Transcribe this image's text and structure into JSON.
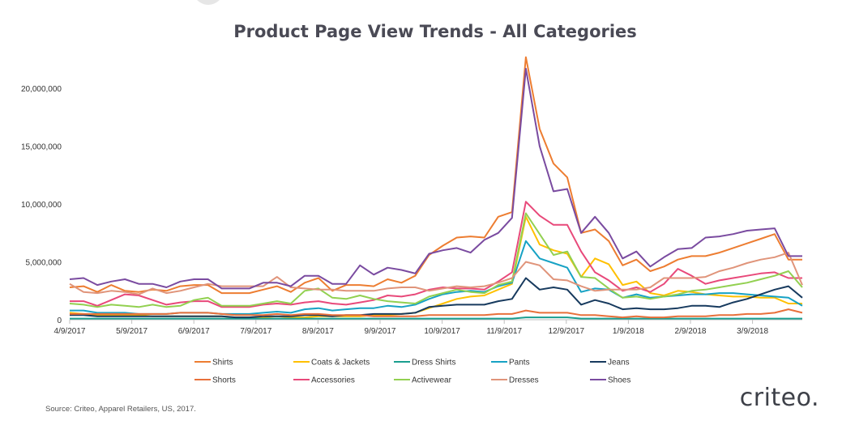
{
  "chart_data": {
    "type": "line",
    "title": "Product Page View Trends - All Categories",
    "xlabel": "",
    "ylabel": "",
    "ylim": [
      0,
      22600000
    ],
    "y_ticks": [
      0,
      5000000,
      10000000,
      15000000,
      20000000
    ],
    "y_tick_labels": [
      "0",
      "5,000,000",
      "10,000,000",
      "15,000,000",
      "20,000,000"
    ],
    "x_tick_labels": [
      "4/9/2017",
      "5/9/2017",
      "6/9/2017",
      "7/9/2017",
      "8/9/2017",
      "9/9/2017",
      "10/9/2017",
      "11/9/2017",
      "12/9/2017",
      "1/9/2018",
      "2/9/2018",
      "3/9/2018"
    ],
    "x": [
      "4/9/2017",
      "4/16/2017",
      "4/23/2017",
      "4/30/2017",
      "5/7/2017",
      "5/14/2017",
      "5/21/2017",
      "5/28/2017",
      "6/4/2017",
      "6/11/2017",
      "6/18/2017",
      "6/25/2017",
      "7/2/2017",
      "7/9/2017",
      "7/16/2017",
      "7/23/2017",
      "7/30/2017",
      "8/6/2017",
      "8/13/2017",
      "8/20/2017",
      "8/27/2017",
      "9/3/2017",
      "9/10/2017",
      "9/17/2017",
      "9/24/2017",
      "10/1/2017",
      "10/8/2017",
      "10/15/2017",
      "10/22/2017",
      "10/29/2017",
      "11/5/2017",
      "11/12/2017",
      "11/19/2017",
      "11/26/2017",
      "12/3/2017",
      "12/10/2017",
      "12/17/2017",
      "12/24/2017",
      "12/31/2017",
      "1/7/2018",
      "1/14/2018",
      "1/21/2018",
      "1/28/2018",
      "2/4/2018",
      "2/11/2018",
      "2/18/2018",
      "2/25/2018",
      "3/4/2018",
      "3/11/2018",
      "3/18/2018",
      "3/25/2018",
      "4/1/2018",
      "4/8/2018",
      "4/15/2018"
    ],
    "series": [
      {
        "name": "Shirts",
        "color": "#ed7d31",
        "values": [
          2800000,
          2900000,
          2400000,
          3000000,
          2500000,
          2400000,
          2600000,
          2500000,
          2900000,
          3000000,
          3000000,
          2300000,
          2300000,
          2300000,
          2600000,
          2900000,
          2400000,
          3200000,
          3600000,
          2500000,
          3000000,
          3000000,
          2900000,
          3500000,
          3200000,
          3800000,
          5600000,
          6400000,
          7100000,
          7200000,
          7100000,
          8900000,
          9300000,
          22700000,
          16500000,
          13500000,
          12300000,
          7500000,
          7800000,
          6800000,
          4700000,
          5200000,
          4200000,
          4600000,
          5200000,
          5500000,
          5500000,
          5800000,
          6200000,
          6600000,
          7000000,
          7400000,
          5200000,
          5200000
        ]
      },
      {
        "name": "Coats & Jackets",
        "color": "#ffc000",
        "values": [
          600000,
          500000,
          400000,
          400000,
          400000,
          400000,
          300000,
          300000,
          300000,
          300000,
          300000,
          300000,
          200000,
          200000,
          200000,
          300000,
          200000,
          200000,
          300000,
          300000,
          300000,
          300000,
          400000,
          400000,
          500000,
          600000,
          1000000,
          1400000,
          1800000,
          2000000,
          2100000,
          2600000,
          3100000,
          8900000,
          6500000,
          6000000,
          5700000,
          3700000,
          5300000,
          4800000,
          3000000,
          3300000,
          2300000,
          2100000,
          2500000,
          2400000,
          2200000,
          2100000,
          2000000,
          2000000,
          1900000,
          1900000,
          1400000,
          1400000
        ]
      },
      {
        "name": "Dress Shirts",
        "color": "#1a9e8f",
        "values": [
          100000,
          100000,
          100000,
          100000,
          100000,
          100000,
          100000,
          100000,
          100000,
          100000,
          100000,
          100000,
          100000,
          100000,
          100000,
          100000,
          100000,
          100000,
          100000,
          100000,
          100000,
          100000,
          100000,
          100000,
          100000,
          100000,
          100000,
          100000,
          100000,
          100000,
          100000,
          100000,
          100000,
          200000,
          200000,
          200000,
          200000,
          100000,
          100000,
          100000,
          100000,
          100000,
          100000,
          100000,
          100000,
          100000,
          100000,
          100000,
          100000,
          100000,
          100000,
          100000,
          100000,
          100000
        ]
      },
      {
        "name": "Pants",
        "color": "#17a2c4",
        "values": [
          800000,
          800000,
          600000,
          600000,
          600000,
          500000,
          500000,
          500000,
          600000,
          600000,
          600000,
          500000,
          500000,
          500000,
          600000,
          700000,
          600000,
          900000,
          1000000,
          800000,
          900000,
          1000000,
          1000000,
          1200000,
          1100000,
          1300000,
          1800000,
          2200000,
          2400000,
          2500000,
          2400000,
          2900000,
          3200000,
          6800000,
          5300000,
          4900000,
          4500000,
          2400000,
          2700000,
          2600000,
          1900000,
          2200000,
          1900000,
          2000000,
          2100000,
          2200000,
          2200000,
          2300000,
          2300000,
          2200000,
          2100000,
          2000000,
          1900000,
          1200000
        ]
      },
      {
        "name": "Jeans",
        "color": "#173a5e",
        "values": [
          400000,
          400000,
          300000,
          300000,
          300000,
          300000,
          300000,
          300000,
          300000,
          300000,
          300000,
          300000,
          200000,
          200000,
          300000,
          300000,
          300000,
          400000,
          400000,
          300000,
          400000,
          400000,
          500000,
          500000,
          500000,
          600000,
          1100000,
          1200000,
          1300000,
          1300000,
          1300000,
          1600000,
          1800000,
          3600000,
          2600000,
          2800000,
          2600000,
          1300000,
          1700000,
          1400000,
          900000,
          1000000,
          900000,
          900000,
          1000000,
          1200000,
          1200000,
          1100000,
          1500000,
          1800000,
          2200000,
          2600000,
          2900000,
          1900000
        ]
      },
      {
        "name": "Shorts",
        "color": "#e8703a",
        "values": [
          500000,
          500000,
          500000,
          500000,
          500000,
          500000,
          500000,
          500000,
          600000,
          600000,
          600000,
          500000,
          400000,
          400000,
          400000,
          500000,
          400000,
          500000,
          500000,
          400000,
          400000,
          400000,
          300000,
          300000,
          300000,
          300000,
          400000,
          400000,
          400000,
          400000,
          400000,
          500000,
          500000,
          800000,
          600000,
          600000,
          600000,
          400000,
          400000,
          300000,
          200000,
          300000,
          200000,
          200000,
          300000,
          300000,
          300000,
          400000,
          400000,
          500000,
          500000,
          600000,
          900000,
          600000
        ]
      },
      {
        "name": "Accessories",
        "color": "#e8497a",
        "values": [
          1600000,
          1600000,
          1200000,
          1700000,
          2200000,
          2100000,
          1700000,
          1300000,
          1500000,
          1600000,
          1600000,
          1100000,
          1100000,
          1100000,
          1300000,
          1400000,
          1300000,
          1500000,
          1600000,
          1400000,
          1300000,
          1500000,
          1700000,
          2100000,
          2000000,
          2200000,
          2600000,
          2800000,
          2700000,
          2700000,
          2600000,
          3300000,
          4100000,
          10200000,
          9000000,
          8200000,
          8200000,
          5900000,
          4100000,
          3400000,
          2500000,
          2800000,
          2400000,
          3100000,
          4400000,
          3800000,
          3100000,
          3400000,
          3600000,
          3800000,
          4000000,
          4100000,
          3600000,
          3600000
        ]
      },
      {
        "name": "Activewear",
        "color": "#92d050",
        "values": [
          1400000,
          1300000,
          1100000,
          1300000,
          1200000,
          1100000,
          1300000,
          1100000,
          1200000,
          1700000,
          1900000,
          1200000,
          1200000,
          1200000,
          1400000,
          1600000,
          1400000,
          2500000,
          2700000,
          1900000,
          1800000,
          2100000,
          1800000,
          1600000,
          1500000,
          1400000,
          2000000,
          2300000,
          2600000,
          2400000,
          2300000,
          3000000,
          3300000,
          9200000,
          7400000,
          5600000,
          5900000,
          3700000,
          3600000,
          2700000,
          1900000,
          2000000,
          1800000,
          2000000,
          2200000,
          2500000,
          2600000,
          2800000,
          3000000,
          3200000,
          3500000,
          3800000,
          4200000,
          2800000
        ]
      },
      {
        "name": "Dresses",
        "color": "#e0947a",
        "values": [
          3100000,
          2400000,
          2300000,
          2500000,
          2400000,
          2200000,
          2700000,
          2300000,
          2500000,
          2800000,
          3100000,
          2900000,
          2900000,
          2900000,
          2900000,
          3700000,
          2800000,
          2700000,
          2600000,
          2600000,
          2500000,
          2500000,
          2500000,
          2700000,
          2800000,
          2800000,
          2500000,
          2700000,
          2900000,
          2800000,
          2900000,
          3200000,
          3600000,
          5000000,
          4700000,
          3500000,
          3400000,
          2900000,
          2500000,
          2600000,
          2600000,
          2600000,
          2800000,
          3600000,
          3600000,
          3600000,
          3700000,
          4200000,
          4500000,
          4900000,
          5200000,
          5400000,
          5800000,
          3000000
        ]
      },
      {
        "name": "Shoes",
        "color": "#7a4ba0",
        "values": [
          3500000,
          3600000,
          3000000,
          3300000,
          3500000,
          3100000,
          3100000,
          2800000,
          3300000,
          3500000,
          3500000,
          2700000,
          2700000,
          2700000,
          3200000,
          3200000,
          2900000,
          3800000,
          3800000,
          3100000,
          3100000,
          4700000,
          3900000,
          4500000,
          4300000,
          4000000,
          5700000,
          6000000,
          6200000,
          5800000,
          6900000,
          7500000,
          8800000,
          21700000,
          15000000,
          11100000,
          11300000,
          7500000,
          8900000,
          7500000,
          5300000,
          5900000,
          4600000,
          5400000,
          6100000,
          6200000,
          7100000,
          7200000,
          7400000,
          7700000,
          7800000,
          7900000,
          5500000,
          5500000
        ]
      }
    ],
    "legend_position": "bottom",
    "grid": false
  },
  "footer": {
    "source": "Source: Criteo, Apparel Retailers, US, 2017.",
    "brand": "criteo."
  }
}
